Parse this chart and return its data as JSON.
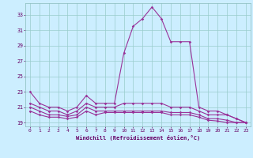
{
  "xlabel": "Windchill (Refroidissement éolien,°C)",
  "bg_color": "#cceeff",
  "line_color": "#993399",
  "grid_color": "#99cccc",
  "ylim": [
    18.5,
    34.5
  ],
  "xlim": [
    -0.5,
    23.5
  ],
  "yticks": [
    19,
    21,
    23,
    25,
    27,
    29,
    31,
    33
  ],
  "xticks": [
    0,
    1,
    2,
    3,
    4,
    5,
    6,
    7,
    8,
    9,
    10,
    11,
    12,
    13,
    14,
    15,
    16,
    17,
    18,
    19,
    20,
    21,
    22,
    23
  ],
  "line1": [
    23.0,
    21.5,
    21.0,
    21.0,
    20.5,
    21.0,
    22.5,
    21.5,
    21.5,
    21.5,
    28.0,
    31.5,
    32.5,
    34.0,
    32.5,
    29.5,
    29.5,
    29.5,
    21.0,
    20.5,
    20.5,
    20.0,
    19.5,
    19.0
  ],
  "line2": [
    21.5,
    21.0,
    20.5,
    20.5,
    20.0,
    20.5,
    21.5,
    21.0,
    21.0,
    21.0,
    21.5,
    21.5,
    21.5,
    21.5,
    21.5,
    21.0,
    21.0,
    21.0,
    20.5,
    20.0,
    20.0,
    20.0,
    19.5,
    19.0
  ],
  "line3": [
    21.0,
    20.5,
    20.0,
    20.0,
    19.8,
    20.0,
    21.0,
    20.5,
    20.5,
    20.5,
    20.5,
    20.5,
    20.5,
    20.5,
    20.5,
    20.3,
    20.3,
    20.3,
    20.0,
    19.5,
    19.5,
    19.3,
    19.0,
    19.0
  ],
  "line4": [
    20.5,
    20.0,
    19.7,
    19.7,
    19.5,
    19.7,
    20.5,
    20.0,
    20.3,
    20.3,
    20.3,
    20.3,
    20.3,
    20.3,
    20.3,
    20.0,
    20.0,
    20.0,
    19.7,
    19.3,
    19.2,
    19.0,
    19.0,
    19.0
  ]
}
